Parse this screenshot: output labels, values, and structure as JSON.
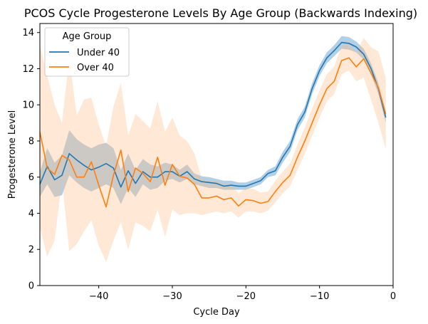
{
  "chart_data": {
    "type": "line",
    "title": "PCOS Cycle Progesterone Levels By Age Group (Backwards Indexing)",
    "xlabel": "Cycle Day",
    "ylabel": "Progesterone Level",
    "xlim": [
      -48,
      0
    ],
    "ylim": [
      0,
      14.5
    ],
    "xticks": [
      -40,
      -30,
      -20,
      -10,
      0
    ],
    "xtick_labels": [
      "−40",
      "−30",
      "−20",
      "−10",
      "0"
    ],
    "yticks": [
      0,
      2,
      4,
      6,
      8,
      10,
      12,
      14
    ],
    "ytick_labels": [
      "0",
      "2",
      "4",
      "6",
      "8",
      "10",
      "12",
      "14"
    ],
    "grid": false,
    "legend": {
      "title": "Age Group",
      "placement": "upper-left"
    },
    "x": [
      -48,
      -47,
      -46,
      -45,
      -44,
      -43,
      -42,
      -41,
      -40,
      -39,
      -38,
      -37,
      -36,
      -35,
      -34,
      -33,
      -32,
      -31,
      -30,
      -29,
      -28,
      -27,
      -26,
      -25,
      -24,
      -23,
      -22,
      -21,
      -20,
      -19,
      -18,
      -17,
      -16,
      -15,
      -14,
      -13,
      -12,
      -11,
      -10,
      -9,
      -8,
      -7,
      -6,
      -5,
      -4,
      -3,
      -2,
      -1
    ],
    "series": [
      {
        "name": "Under 40",
        "color": "#1f77b4",
        "band_color": "#1f77b4",
        "values": [
          5.6,
          6.6,
          5.85,
          6.1,
          7.3,
          6.95,
          6.65,
          6.4,
          6.55,
          6.75,
          6.5,
          5.45,
          6.35,
          5.65,
          6.3,
          6.0,
          6.0,
          6.3,
          6.3,
          6.05,
          6.3,
          5.9,
          5.75,
          5.7,
          5.65,
          5.5,
          5.55,
          5.5,
          5.5,
          5.65,
          5.8,
          6.2,
          6.35,
          7.1,
          7.7,
          8.9,
          9.6,
          10.9,
          11.9,
          12.6,
          13.0,
          13.45,
          13.4,
          13.2,
          12.8,
          12.0,
          10.9,
          9.3
        ],
        "lower": [
          4.9,
          5.6,
          4.9,
          5.0,
          6.1,
          5.7,
          5.4,
          5.2,
          5.4,
          5.6,
          5.4,
          4.5,
          5.4,
          4.9,
          5.6,
          5.3,
          5.4,
          5.8,
          5.9,
          5.7,
          5.9,
          5.6,
          5.5,
          5.4,
          5.4,
          5.3,
          5.3,
          5.3,
          5.3,
          5.45,
          5.6,
          6.0,
          6.1,
          6.8,
          7.4,
          8.6,
          9.3,
          10.6,
          11.6,
          12.3,
          12.7,
          13.1,
          13.05,
          12.9,
          12.5,
          11.7,
          10.6,
          9.0
        ],
        "upper": [
          6.3,
          7.6,
          6.8,
          7.2,
          8.6,
          8.1,
          7.8,
          7.6,
          7.8,
          7.9,
          7.6,
          6.4,
          7.3,
          6.4,
          7.0,
          6.7,
          6.6,
          6.8,
          6.7,
          6.4,
          6.7,
          6.2,
          6.05,
          6.0,
          5.9,
          5.8,
          5.8,
          5.7,
          5.7,
          5.85,
          6.0,
          6.4,
          6.6,
          7.4,
          8.0,
          9.2,
          9.9,
          11.2,
          12.2,
          12.9,
          13.3,
          13.8,
          13.75,
          13.5,
          13.1,
          12.3,
          11.2,
          9.6
        ]
      },
      {
        "name": "Over 40",
        "color": "#ff7f0e",
        "band_color": "#ffbe86",
        "values": [
          8.5,
          6.5,
          6.15,
          7.2,
          6.95,
          6.0,
          6.0,
          6.85,
          5.55,
          4.35,
          6.1,
          7.5,
          5.2,
          6.5,
          6.2,
          5.75,
          7.1,
          5.55,
          6.7,
          6.05,
          5.95,
          5.6,
          4.85,
          4.85,
          4.95,
          4.75,
          4.85,
          4.4,
          4.75,
          4.7,
          4.55,
          4.65,
          5.2,
          5.7,
          6.1,
          7.1,
          8.0,
          9.0,
          10.0,
          10.9,
          11.3,
          12.45,
          12.6,
          12.1,
          12.55,
          11.75,
          10.95,
          9.5
        ],
        "lower": [
          3.2,
          1.6,
          2.5,
          5.8,
          1.9,
          2.3,
          3.0,
          3.6,
          2.2,
          1.3,
          2.5,
          3.5,
          2.0,
          3.5,
          3.3,
          3.0,
          4.2,
          2.7,
          4.2,
          3.9,
          4.0,
          4.0,
          3.9,
          4.0,
          4.1,
          4.0,
          4.1,
          3.75,
          4.1,
          4.1,
          4.0,
          4.15,
          4.6,
          5.1,
          5.5,
          6.4,
          7.3,
          8.3,
          9.3,
          10.2,
          10.6,
          11.7,
          11.9,
          11.3,
          11.5,
          10.3,
          9.0,
          7.55
        ],
        "upper": [
          13.3,
          11.6,
          10.0,
          9.0,
          12.6,
          9.4,
          10.3,
          10.4,
          8.9,
          7.7,
          9.9,
          11.2,
          8.3,
          9.5,
          9.1,
          8.7,
          10.2,
          8.5,
          9.3,
          8.3,
          8.0,
          7.3,
          5.9,
          5.8,
          5.8,
          5.6,
          5.6,
          5.1,
          5.4,
          5.35,
          5.15,
          5.2,
          5.8,
          6.3,
          6.75,
          7.8,
          8.75,
          9.8,
          10.8,
          11.7,
          12.1,
          13.3,
          13.4,
          12.9,
          13.7,
          13.2,
          12.95,
          11.5
        ]
      }
    ]
  }
}
